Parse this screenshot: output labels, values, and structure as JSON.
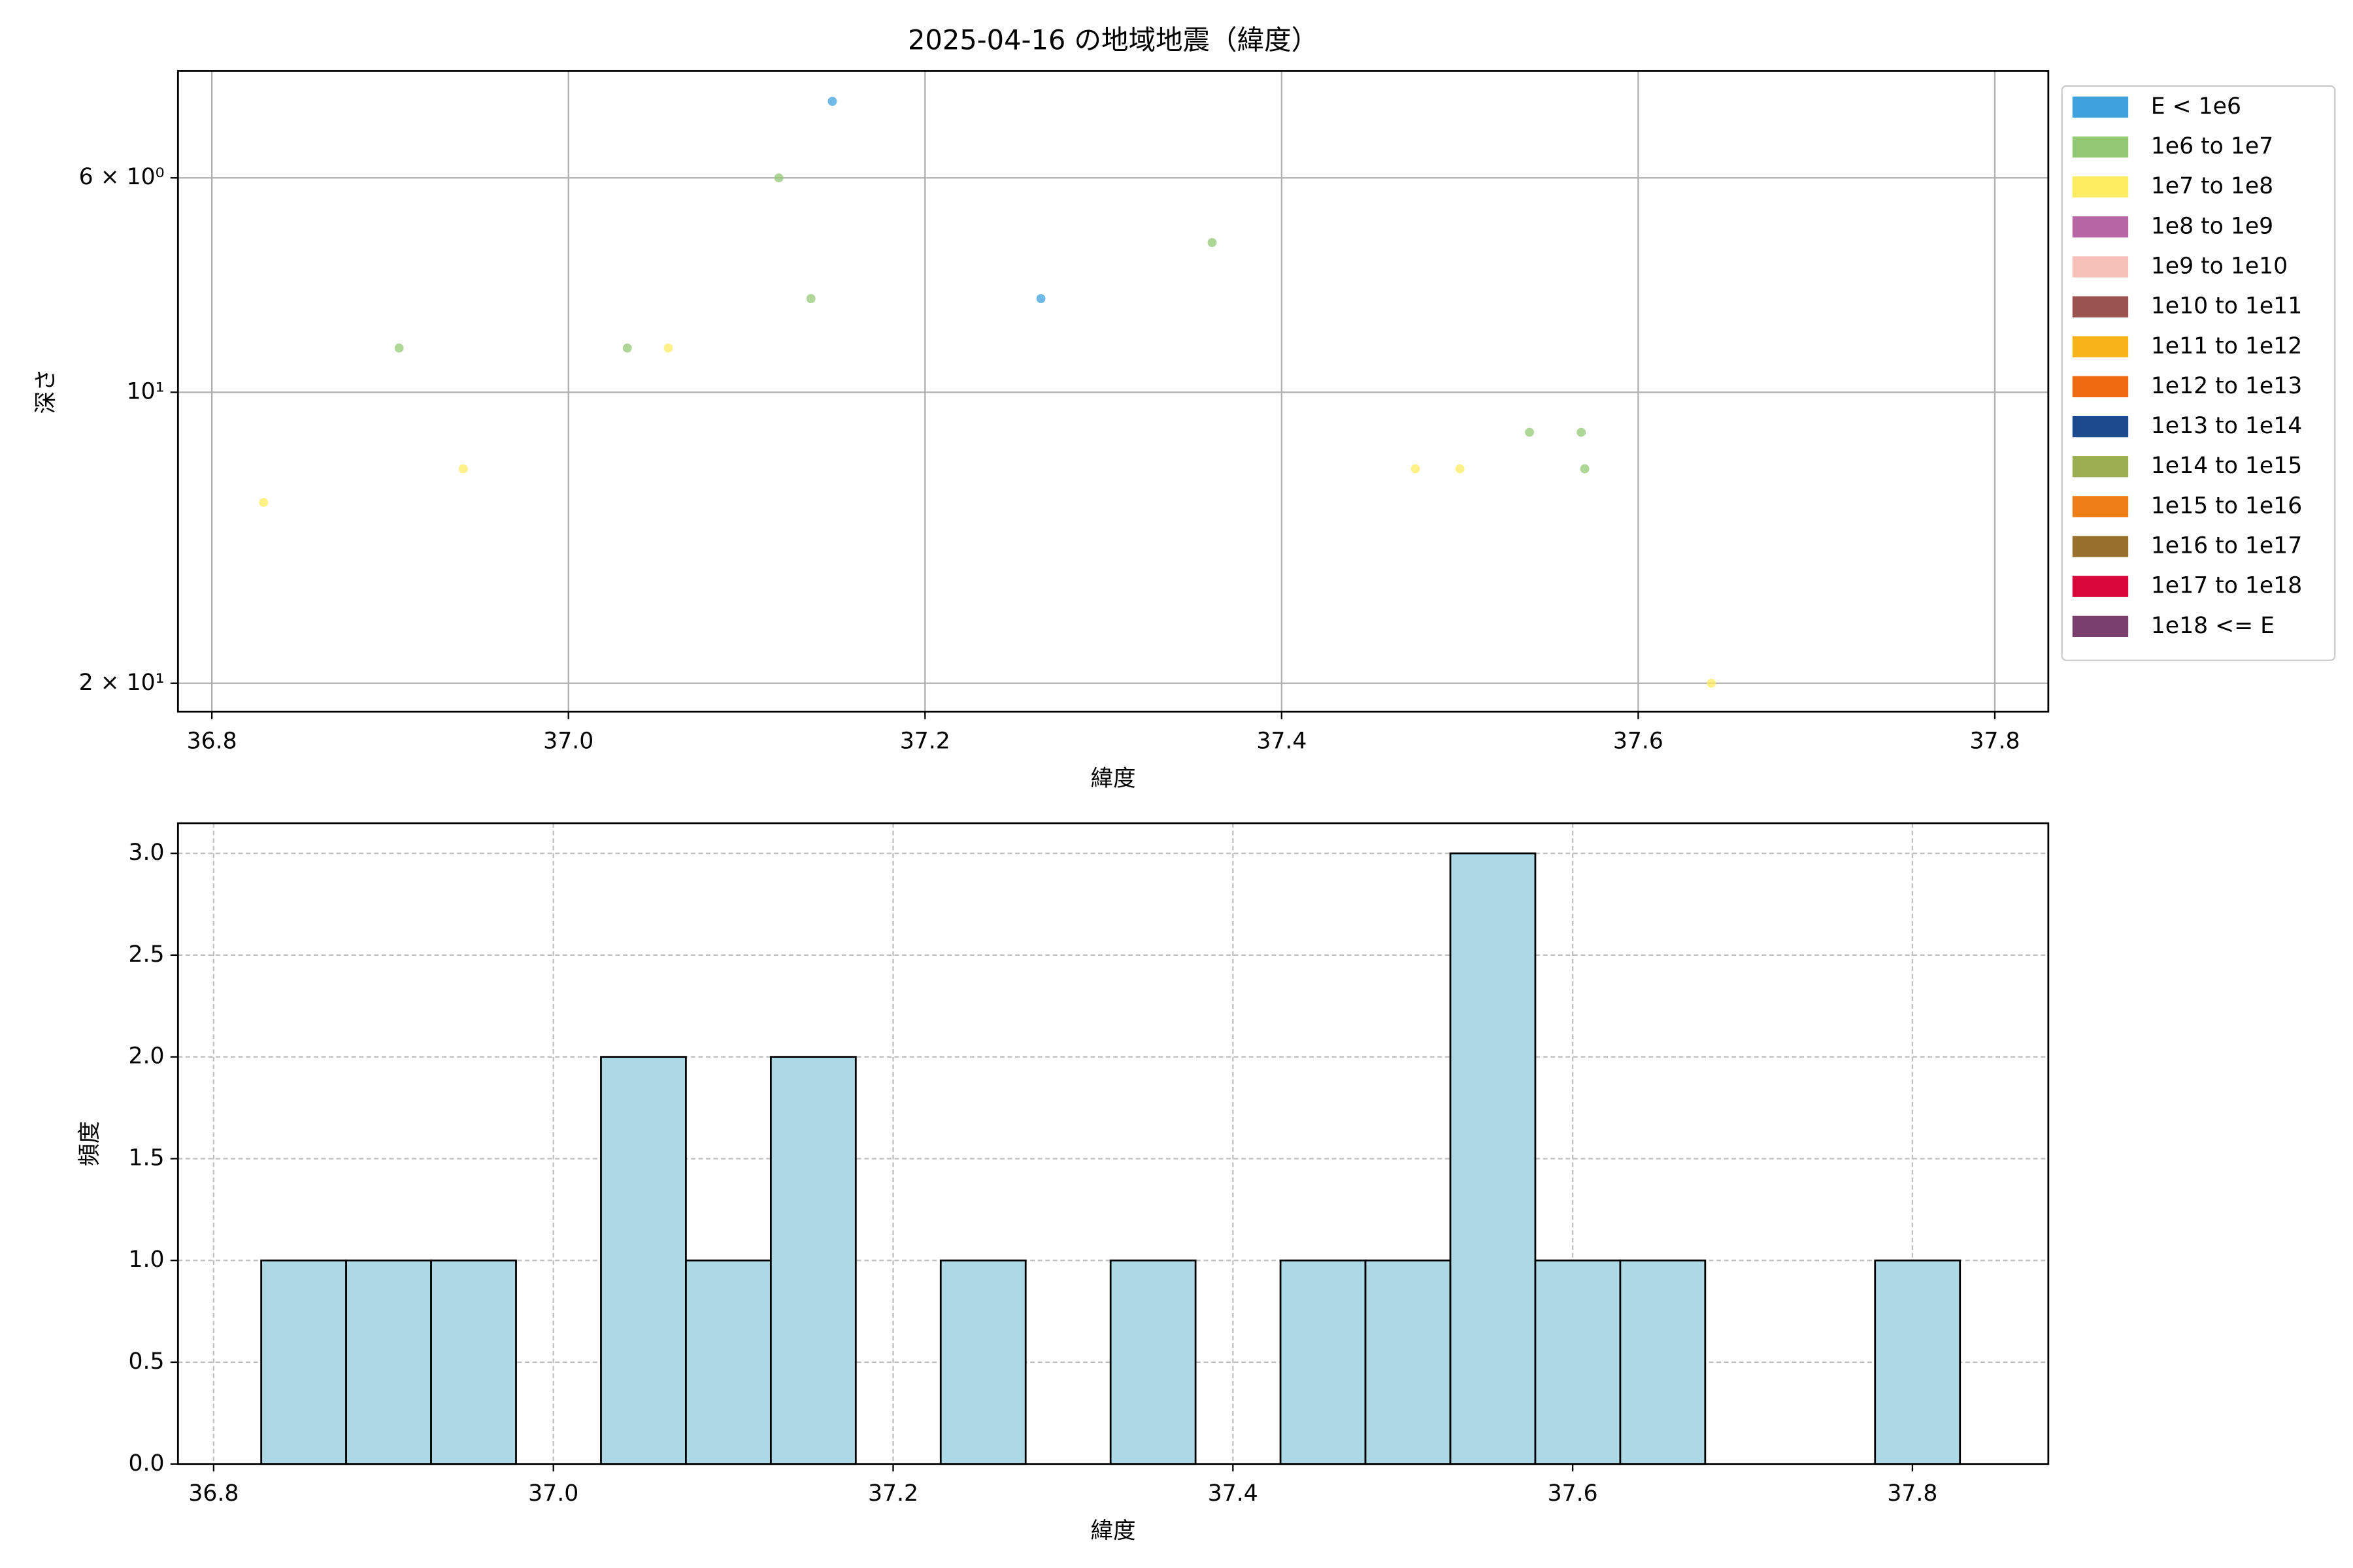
{
  "chart_data": [
    {
      "type": "scatter",
      "title": "2025-04-16 の地域地震（緯度）",
      "x_label": "緯度",
      "y_label": "深さ",
      "yscale": "log",
      "y_inverted": true,
      "grid": true,
      "grid_style": "solid",
      "legend": "outside-right",
      "xlim": [
        36.781,
        37.83
      ],
      "ylim": [
        4.65,
        21.4
      ],
      "xticks": [
        36.8,
        {
          "value": 37,
          "label": "37.0"
        },
        37.2,
        37.4,
        37.6,
        37.8
      ],
      "yticks": [
        {
          "value": 6,
          "label": "6 × 10⁰"
        },
        {
          "value": 10,
          "label": "10¹"
        },
        {
          "value": 20,
          "label": "2 × 10¹"
        }
      ],
      "series": [
        {
          "name": "E < 1e6",
          "color": "#3ea1dc",
          "x": [
            37.148,
            37.265
          ],
          "y": [
            5.0,
            8
          ]
        },
        {
          "name": "1e6 to 1e7",
          "color": "#93c874",
          "x": [
            37.118,
            37.361,
            37.136,
            36.905,
            37.033,
            37.539,
            37.568,
            37.57
          ],
          "y": [
            6,
            7,
            8,
            9,
            9,
            11,
            11,
            12
          ]
        },
        {
          "name": "1e7 to 1e8",
          "color": "#fcec5f",
          "x": [
            37.056,
            36.941,
            37.475,
            37.5,
            36.829,
            37.641
          ],
          "y": [
            9,
            12,
            12,
            12,
            13,
            20
          ]
        },
        {
          "name": "1e8 to 1e9",
          "color": "#b865a5",
          "x": [],
          "y": []
        },
        {
          "name": "1e9 to 1e10",
          "color": "#f5c0b8",
          "x": [],
          "y": []
        },
        {
          "name": "1e10 to 1e11",
          "color": "#9b534f",
          "x": [],
          "y": []
        },
        {
          "name": "1e11 to 1e12",
          "color": "#f8b31a",
          "x": [],
          "y": []
        },
        {
          "name": "1e12 to 1e13",
          "color": "#ef6a0f",
          "x": [],
          "y": []
        },
        {
          "name": "1e13 to 1e14",
          "color": "#1c4a8f",
          "x": [],
          "y": []
        },
        {
          "name": "1e14 to 1e15",
          "color": "#9caf50",
          "x": [],
          "y": []
        },
        {
          "name": "1e15 to 1e16",
          "color": "#ee7f18",
          "x": [],
          "y": []
        },
        {
          "name": "1e16 to 1e17",
          "color": "#98702d",
          "x": [],
          "y": []
        },
        {
          "name": "1e17 to 1e18",
          "color": "#d8073b",
          "x": [],
          "y": []
        },
        {
          "name": "1e18 <= E",
          "color": "#7b3f6e",
          "x": [],
          "y": []
        }
      ]
    },
    {
      "type": "histogram",
      "x_label": "緯度",
      "y_label": "頻度",
      "color": "#add8e6",
      "edge_color": "#000000",
      "grid": true,
      "grid_style": "dashed",
      "xlim": [
        36.779,
        37.88
      ],
      "ylim": [
        0,
        3.148
      ],
      "xticks": [
        36.8,
        {
          "value": 37,
          "label": "37.0"
        },
        37.2,
        37.4,
        37.6,
        37.8
      ],
      "yticks": [
        {
          "value": 0,
          "label": "0.0"
        },
        0.5,
        {
          "value": 1,
          "label": "1.0"
        },
        1.5,
        {
          "value": 2,
          "label": "2.0"
        },
        2.5,
        {
          "value": 3,
          "label": "3.0"
        }
      ],
      "bins": [
        36.828,
        36.878,
        36.928,
        36.978,
        37.028,
        37.078,
        37.128,
        37.178,
        37.228,
        37.278,
        37.328,
        37.378,
        37.428,
        37.478,
        37.528,
        37.578,
        37.628,
        37.678,
        37.728,
        37.778,
        37.828
      ],
      "counts": [
        1,
        1,
        1,
        0,
        2,
        1,
        2,
        0,
        1,
        0,
        1,
        0,
        1,
        1,
        3,
        1,
        1,
        0,
        0,
        1
      ]
    }
  ]
}
